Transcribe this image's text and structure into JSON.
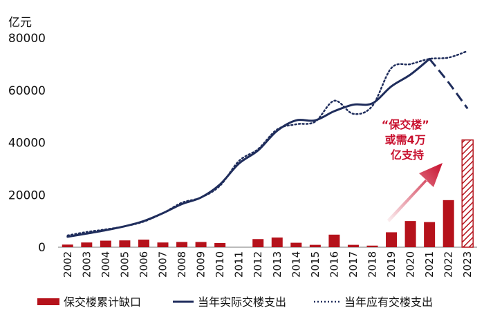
{
  "chart_data": {
    "type": "bar",
    "unit_label": "亿元",
    "ylim": [
      0,
      80000
    ],
    "y_ticks": [
      0,
      20000,
      40000,
      60000,
      80000
    ],
    "grid": false,
    "legend_position": "bottom",
    "categories": [
      "2002",
      "2003",
      "2004",
      "2005",
      "2006",
      "2007",
      "2008",
      "2009",
      "2010",
      "2011",
      "2012",
      "2013",
      "2014",
      "2015",
      "2016",
      "2017",
      "2018",
      "2019",
      "2020",
      "2021",
      "2022",
      "2023"
    ],
    "series": [
      {
        "name": "保交楼累计缺口",
        "type": "bar",
        "color": "#b5121b",
        "values": [
          1000,
          1800,
          2500,
          2600,
          2900,
          1800,
          2000,
          2000,
          1600,
          0,
          3100,
          3700,
          1700,
          900,
          4800,
          900,
          600,
          5700,
          10000,
          9600,
          18000,
          41000
        ],
        "hatched_categories": [
          "2023"
        ]
      },
      {
        "name": "当年实际交楼支出",
        "type": "line",
        "style": "solid",
        "color": "#1f2d5c",
        "values": [
          4000,
          5200,
          6500,
          8000,
          10000,
          13000,
          16500,
          19000,
          24000,
          32000,
          37000,
          44500,
          48500,
          48500,
          52000,
          54500,
          55000,
          61500,
          66000,
          72000,
          63000,
          53000
        ],
        "dashed_categories": [
          "2022",
          "2023"
        ]
      },
      {
        "name": "当年应有交楼支出",
        "type": "line",
        "style": "dotted",
        "color": "#1f2d5c",
        "values": [
          4500,
          5800,
          6800,
          8000,
          9800,
          13000,
          17000,
          19000,
          23500,
          33000,
          37500,
          45000,
          47000,
          48000,
          56000,
          51000,
          54000,
          68500,
          70000,
          72000,
          72500,
          75000
        ]
      }
    ],
    "annotation": {
      "lines": [
        "“保交楼”",
        "或需4万",
        "亿支持"
      ],
      "color": "#c8102e"
    }
  }
}
